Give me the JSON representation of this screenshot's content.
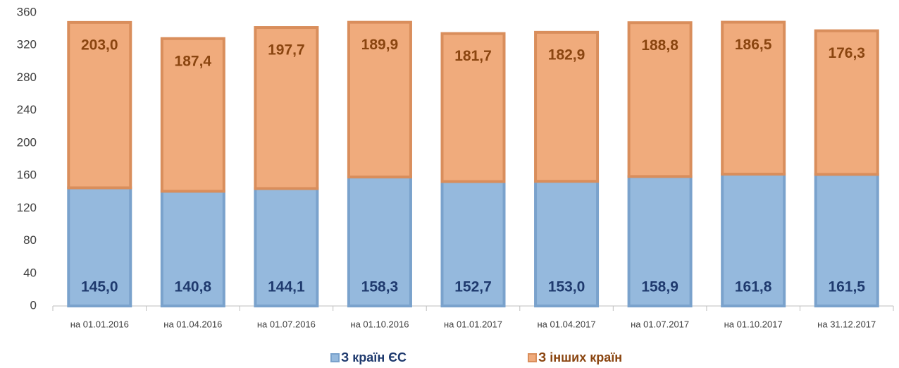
{
  "chart_data": {
    "type": "stacked_bar",
    "categories": [
      "на 01.01.2016",
      "на 01.04.2016",
      "на 01.07.2016",
      "на 01.10.2016",
      "на 01.01.2017",
      "на 01.04.2017",
      "на 01.07.2017",
      "на 01.10.2017",
      "на 31.12.2017"
    ],
    "series": [
      {
        "name": "З країн ЄС",
        "color": "#95b9dd",
        "values": [
          145.0,
          140.8,
          144.1,
          158.3,
          152.7,
          153.0,
          158.9,
          161.8,
          161.5
        ],
        "value_labels": [
          "145,0",
          "140,8",
          "144,1",
          "158,3",
          "152,7",
          "153,0",
          "158,9",
          "161,8",
          "161,5"
        ]
      },
      {
        "name": "З інших країн",
        "color": "#f0ab7c",
        "values": [
          203.0,
          187.4,
          197.7,
          189.9,
          181.7,
          182.9,
          188.8,
          186.5,
          176.3
        ],
        "value_labels": [
          "203,0",
          "187,4",
          "197,7",
          "189,9",
          "181,7",
          "182,9",
          "188,8",
          "186,5",
          "176,3"
        ]
      }
    ],
    "ylim": [
      0,
      360
    ],
    "yticks": [
      0,
      40,
      80,
      120,
      160,
      200,
      240,
      280,
      320,
      360
    ],
    "grid": false
  }
}
